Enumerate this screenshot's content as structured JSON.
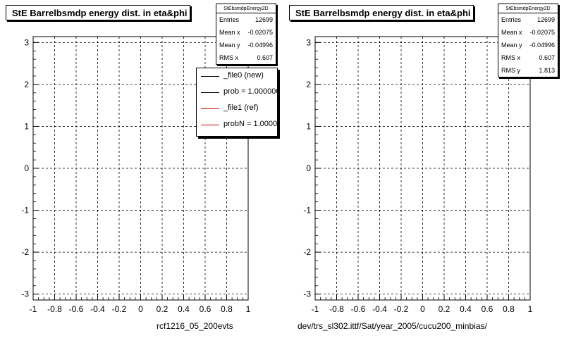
{
  "colors": {
    "new": "#000000",
    "ref": "#cc0000",
    "frame": "#000000"
  },
  "footer": {
    "left_small": "",
    "left": "rcf1216_05_200evts",
    "right": "dev/trs_sl302.ittf/Sat/year_2005/cucu200_minbias/"
  },
  "legend": [
    {
      "label": "_file0 (new)",
      "color": "#000000"
    },
    {
      "label": "prob = 1.000000",
      "color": "#000000"
    },
    {
      "label": "_file1 (ref)",
      "color": "#cc0000"
    },
    {
      "label": "probN = 1.000000",
      "color": "#cc0000"
    }
  ],
  "panels": [
    {
      "title": "StE Barrelbsmdp energy dist. in eta&phi",
      "stats": {
        "name": "StEbsmdpEnergy2D",
        "rows": [
          {
            "label": "Entries",
            "value": "12699"
          },
          {
            "label": "Mean x",
            "value": "-0.02075"
          },
          {
            "label": "Mean y",
            "value": "-0.04996"
          },
          {
            "label": "RMS x",
            "value": "0.607"
          }
        ]
      }
    },
    {
      "title": "StE Barrelbsmdp energy dist. in eta&phi",
      "stats": {
        "name": "StEbsmdpEnergy2D",
        "rows": [
          {
            "label": "Entries",
            "value": "12699"
          },
          {
            "label": "Mean x",
            "value": "-0.02075"
          },
          {
            "label": "Mean y",
            "value": "-0.04996"
          },
          {
            "label": "RMS x",
            "value": "0.607"
          },
          {
            "label": "RMS y",
            "value": "1.813"
          }
        ]
      }
    }
  ],
  "chart_data": [
    {
      "type": "scatter",
      "title": "StE Barrelbsmdp energy dist. in eta&phi",
      "xlim": [
        -1,
        1
      ],
      "ylim": [
        -3.14,
        3.14
      ],
      "x_ticks": [
        "-1",
        "-0.8",
        "-0.6",
        "-0.4",
        "-0.2",
        "0",
        "0.2",
        "0.4",
        "0.6",
        "0.8",
        "1"
      ],
      "y_ticks": [
        "-3",
        "-2",
        "-1",
        "0",
        "1",
        "2",
        "3"
      ],
      "grid": true,
      "legend_position": "top-right",
      "color": "#000000",
      "series": [
        {
          "name": "_file0 (new)",
          "points": []
        }
      ]
    },
    {
      "type": "scatter",
      "title": "StE Barrelbsmdp energy dist. in eta&phi",
      "xlim": [
        -1,
        1
      ],
      "ylim": [
        -3.14,
        3.14
      ],
      "x_ticks": [
        "-1",
        "-0.8",
        "-0.6",
        "-0.4",
        "-0.2",
        "0",
        "0.2",
        "0.4",
        "0.6",
        "0.8",
        "1"
      ],
      "y_ticks": [
        "-3",
        "-2",
        "-1",
        "0",
        "1",
        "2",
        "3"
      ],
      "grid": true,
      "color": "#cc0000",
      "series": [
        {
          "name": "_file1 (ref)",
          "points": []
        }
      ]
    }
  ]
}
